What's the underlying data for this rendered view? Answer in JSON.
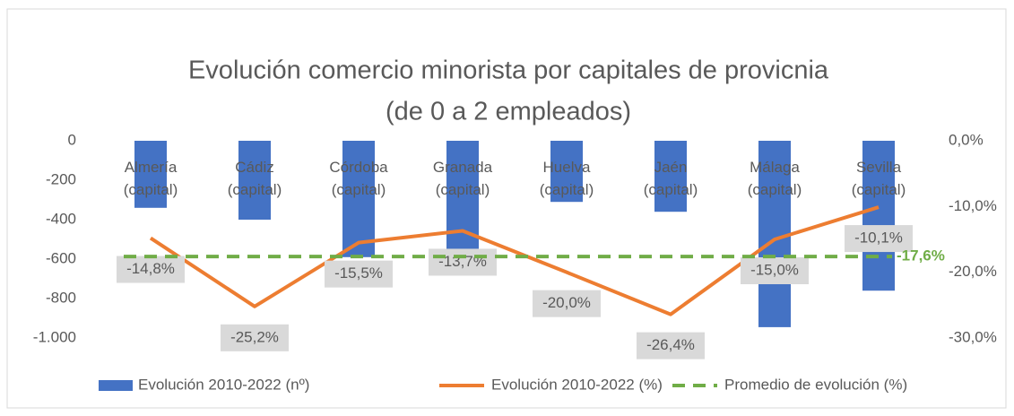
{
  "chart_data": {
    "type": "bar",
    "title": [
      "Evolución comercio minorista por capitales de provicnia",
      "(de 0 a 2 empleados)"
    ],
    "categories": [
      "Almería (capital)",
      "Cádiz (capital)",
      "Córdoba (capital)",
      "Granada (capital)",
      "Huelva (capital)",
      "Jaén (capital)",
      "Málaga (capital)",
      "Sevilla (capital)"
    ],
    "series": [
      {
        "name": "Evolución 2010-2022 (nº)",
        "color": "#4472c4",
        "type": "bar",
        "values": [
          -340,
          -400,
          -590,
          -560,
          -310,
          -360,
          -945,
          -760
        ]
      },
      {
        "name": "Evolución 2010-2022 (%)",
        "color": "#ed7d31",
        "type": "line",
        "axis": "y2",
        "values": [
          -14.8,
          -25.2,
          -15.5,
          -13.7,
          -20.0,
          -26.4,
          -15.0,
          -10.1
        ],
        "value_labels": [
          "-14,8%",
          "-25,2%",
          "-15,5%",
          "-13,7%",
          "-20,0%",
          "-26,4%",
          "-15,0%",
          "-10,1%"
        ]
      },
      {
        "name": "Promedio de evolución (%)",
        "color": "#70ad47",
        "type": "average",
        "axis": "y2",
        "value": -17.6,
        "value_label": "-17,6%"
      }
    ],
    "ylim": [
      -1000,
      0
    ],
    "yticks": [
      0,
      -200,
      -400,
      -600,
      -800,
      {
        "value": -1000,
        "label": "-1.000"
      }
    ],
    "y2lim": [
      -30,
      0
    ],
    "y2ticks": [
      {
        "value": 0,
        "label": "0,0%"
      },
      {
        "value": -10,
        "label": "-10,0%"
      },
      {
        "value": -20,
        "label": "-20,0%"
      },
      {
        "value": -30,
        "label": "-30,0%"
      }
    ],
    "grid": false,
    "legend": "bottom"
  }
}
